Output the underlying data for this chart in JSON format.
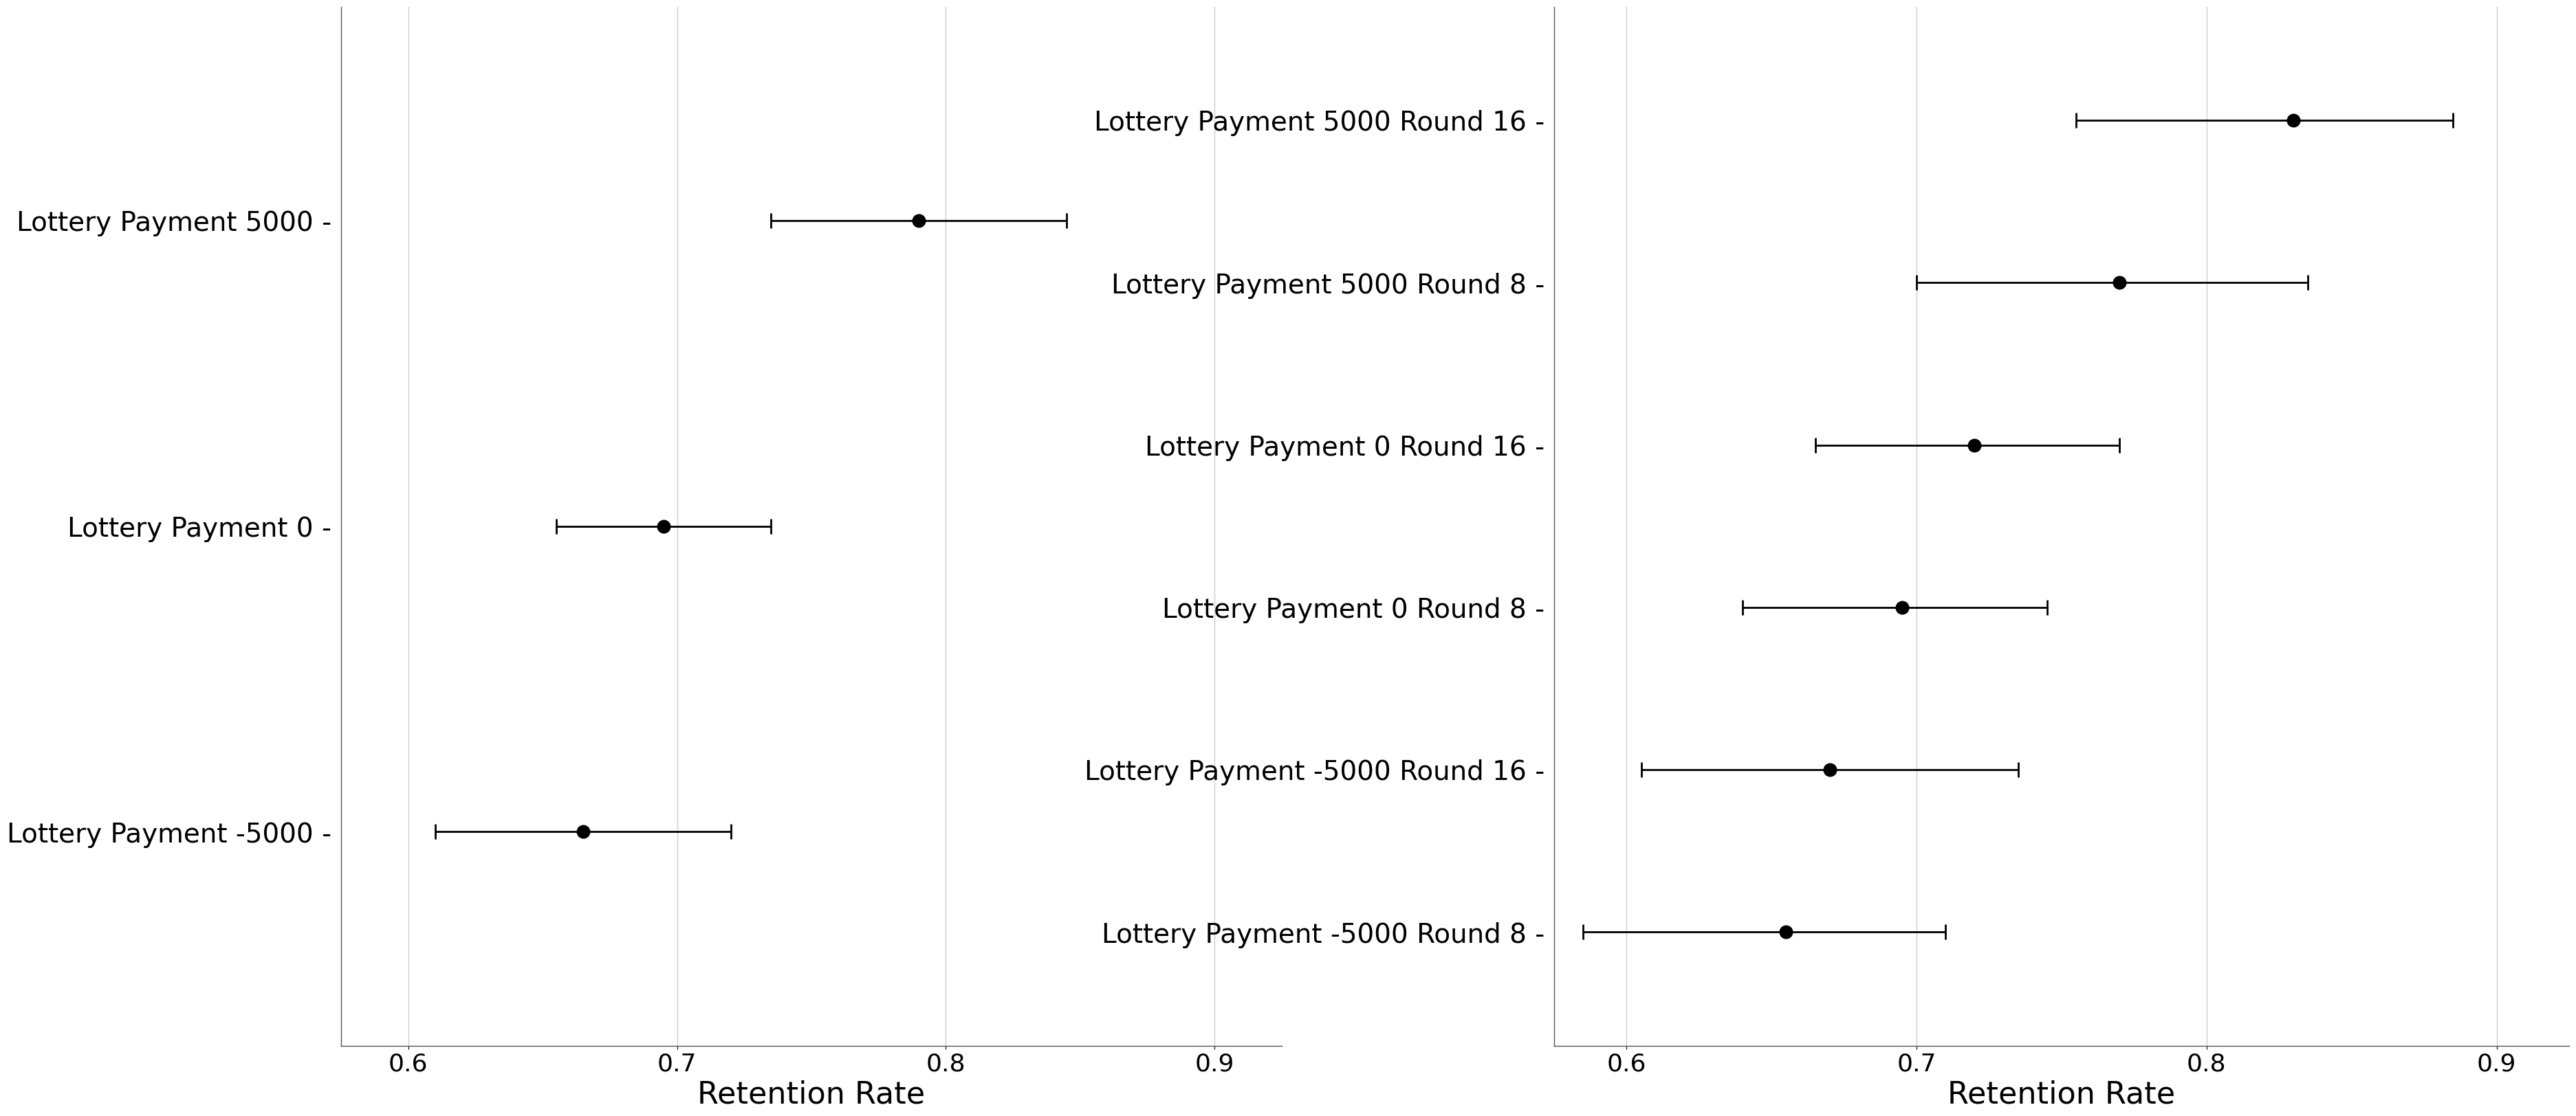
{
  "left_panel": {
    "labels": [
      "Lottery Payment 5000 -",
      "Lottery Payment 0 -",
      "Lottery Payment -5000 -"
    ],
    "centers": [
      0.79,
      0.695,
      0.665
    ],
    "err_low": [
      0.055,
      0.04,
      0.055
    ],
    "err_high": [
      0.055,
      0.04,
      0.055
    ],
    "xlabel": "Retention Rate",
    "xlim": [
      0.575,
      0.925
    ],
    "xticks": [
      0.6,
      0.7,
      0.8,
      0.9
    ]
  },
  "right_panel": {
    "labels": [
      "Lottery Payment 5000 Round 16 -",
      "Lottery Payment 5000 Round 8 -",
      "Lottery Payment 0 Round 16 -",
      "Lottery Payment 0 Round 8 -",
      "Lottery Payment -5000 Round 16 -",
      "Lottery Payment -5000 Round 8 -"
    ],
    "centers": [
      0.83,
      0.77,
      0.72,
      0.695,
      0.67,
      0.655
    ],
    "err_low": [
      0.075,
      0.07,
      0.055,
      0.055,
      0.065,
      0.07
    ],
    "err_high": [
      0.055,
      0.065,
      0.05,
      0.05,
      0.065,
      0.055
    ],
    "xlabel": "Retention Rate",
    "xlim": [
      0.575,
      0.925
    ],
    "xticks": [
      0.6,
      0.7,
      0.8,
      0.9
    ]
  },
  "background_color": "#ffffff",
  "grid_color": "#d0d0d0",
  "dot_color": "#000000",
  "dot_size": 180,
  "line_color": "#000000",
  "line_width": 2.0,
  "cap_size": 8,
  "label_fontsize": 28,
  "tick_fontsize": 26,
  "xlabel_fontsize": 32
}
